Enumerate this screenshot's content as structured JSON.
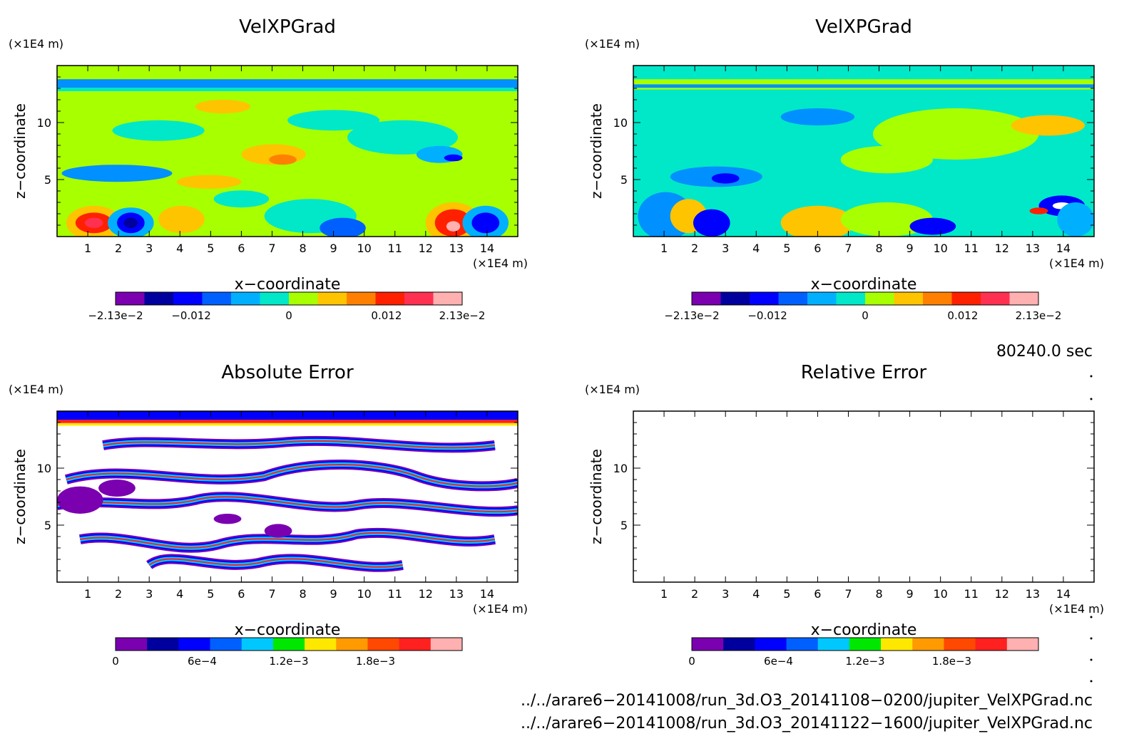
{
  "chart_data": [
    {
      "type": "heatmap",
      "title": "VelXPGrad",
      "xlabel": "x−coordinate",
      "ylabel": "z−coordinate",
      "x_unit": "(×1E4 m)",
      "y_unit": "(×1E4 m)",
      "x_ticks": [
        "1",
        "2",
        "3",
        "4",
        "5",
        "6",
        "7",
        "8",
        "9",
        "10",
        "11",
        "12",
        "13",
        "14"
      ],
      "y_ticks": [
        "5",
        "10"
      ],
      "xlim": [
        0,
        15
      ],
      "ylim": [
        0,
        15
      ],
      "colorbar": {
        "labels": [
          "−2.13e−2",
          "−0.012",
          "0",
          "0.012",
          "2.13e−2"
        ],
        "label_values": [
          -0.0213,
          -0.012,
          0,
          0.012,
          0.0213
        ],
        "range": [
          -0.0213,
          0.0213
        ],
        "colors": [
          "#7a00b0",
          "#00009e",
          "#0000ff",
          "#0060ff",
          "#00b0ff",
          "#00e8c8",
          "#a8ff00",
          "#ffc400",
          "#ff8000",
          "#ff2000",
          "#ff3050",
          "#ffb0b0"
        ]
      }
    },
    {
      "type": "heatmap",
      "title": "VelXPGrad",
      "xlabel": "x−coordinate",
      "ylabel": "z−coordinate",
      "x_unit": "(×1E4 m)",
      "y_unit": "(×1E4 m)",
      "x_ticks": [
        "1",
        "2",
        "3",
        "4",
        "5",
        "6",
        "7",
        "8",
        "9",
        "10",
        "11",
        "12",
        "13",
        "14"
      ],
      "y_ticks": [
        "5",
        "10"
      ],
      "xlim": [
        0,
        15
      ],
      "ylim": [
        0,
        15
      ],
      "colorbar": {
        "labels": [
          "−2.13e−2",
          "−0.012",
          "0",
          "0.012",
          "2.13e−2"
        ],
        "label_values": [
          -0.0213,
          -0.012,
          0,
          0.012,
          0.0213
        ],
        "range": [
          -0.0213,
          0.0213
        ],
        "colors": [
          "#7a00b0",
          "#00009e",
          "#0000ff",
          "#0060ff",
          "#00b0ff",
          "#00e8c8",
          "#a8ff00",
          "#ffc400",
          "#ff8000",
          "#ff2000",
          "#ff3050",
          "#ffb0b0"
        ]
      }
    },
    {
      "type": "heatmap",
      "title": "Absolute Error",
      "xlabel": "x−coordinate",
      "ylabel": "z−coordinate",
      "x_unit": "(×1E4 m)",
      "y_unit": "(×1E4 m)",
      "x_ticks": [
        "1",
        "2",
        "3",
        "4",
        "5",
        "6",
        "7",
        "8",
        "9",
        "10",
        "11",
        "12",
        "13",
        "14"
      ],
      "y_ticks": [
        "5",
        "10"
      ],
      "xlim": [
        0,
        15
      ],
      "ylim": [
        0,
        15
      ],
      "colorbar": {
        "labels": [
          "0",
          "6e−4",
          "1.2e−3",
          "1.8e−3"
        ],
        "label_values": [
          0,
          0.0006,
          0.0012,
          0.0018
        ],
        "range": [
          0,
          0.0024
        ],
        "colors": [
          "#7a00b0",
          "#00009e",
          "#0000ff",
          "#0060ff",
          "#00c8ff",
          "#00e800",
          "#ffe800",
          "#ff9a00",
          "#ff4800",
          "#ff2020",
          "#ffb0b0"
        ]
      }
    },
    {
      "type": "heatmap",
      "title": "Relative Error",
      "xlabel": "x−coordinate",
      "ylabel": "z−coordinate",
      "x_unit": "(×1E4 m)",
      "y_unit": "(×1E4 m)",
      "x_ticks": [
        "1",
        "2",
        "3",
        "4",
        "5",
        "6",
        "7",
        "8",
        "9",
        "10",
        "11",
        "12",
        "13",
        "14"
      ],
      "y_ticks": [
        "5",
        "10"
      ],
      "xlim": [
        0,
        15
      ],
      "ylim": [
        0,
        15
      ],
      "colorbar": {
        "labels": [
          "0",
          "6e−4",
          "1.2e−3",
          "1.8e−3"
        ],
        "label_values": [
          0,
          0.0006,
          0.0012,
          0.0018
        ],
        "range": [
          0,
          0.0024
        ],
        "colors": [
          "#7a00b0",
          "#00009e",
          "#0000ff",
          "#0060ff",
          "#00c8ff",
          "#00e800",
          "#ffe800",
          "#ff9a00",
          "#ff4800",
          "#ff2020",
          "#ffb0b0"
        ]
      }
    }
  ],
  "time_label": "80240.0 sec",
  "files": [
    "../../arare6−20141008/run_3d.O3_20141108−0200/jupiter_VelXPGrad.nc",
    "../../arare6−20141008/run_3d.O3_20141122−1600/jupiter_VelXPGrad.nc"
  ],
  "colors": {
    "field_background": "#a8ff00",
    "upper_band": "#00e8c8",
    "blob_positive": "#ffc400",
    "blob_negative": "#0060ff"
  }
}
